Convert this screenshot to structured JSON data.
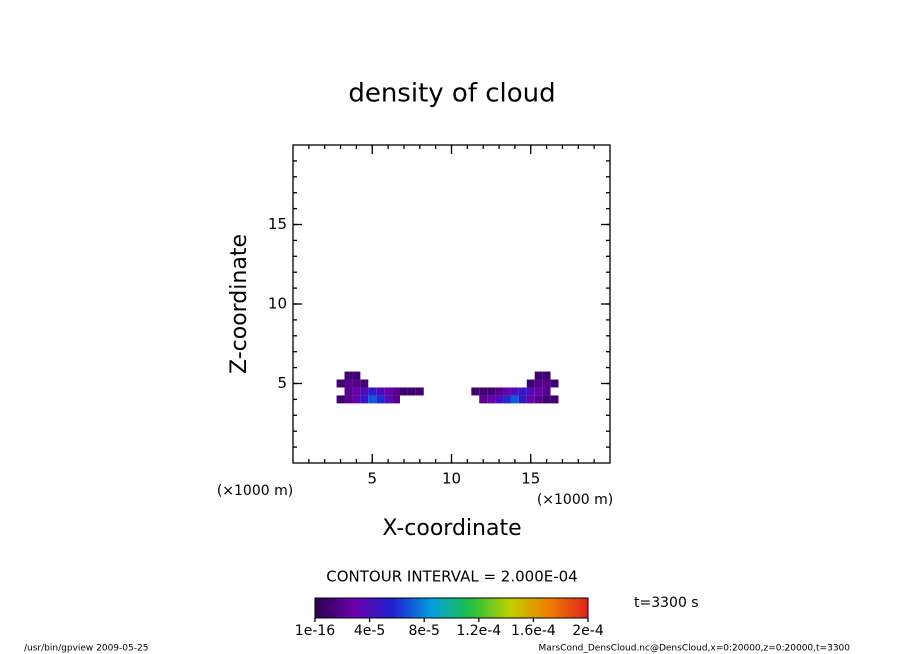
{
  "chart_data": {
    "type": "contour",
    "title": "density of cloud",
    "xlabel": "X-coordinate",
    "ylabel": "Z-coordinate",
    "xunit": "(×1000 m)",
    "yunit": "(×1000 m)",
    "xlim": [
      0,
      20
    ],
    "ylim": [
      0,
      20
    ],
    "xticks": [
      5,
      10,
      15
    ],
    "yticks": [
      5,
      10,
      15
    ],
    "minor_step": 1,
    "cell_size": 0.5,
    "cells": {
      "x": [
        3,
        3.5,
        4,
        4.5,
        5,
        5.5,
        6,
        6.5,
        3.5,
        4,
        4.5,
        5,
        5.5,
        6,
        6.5,
        7,
        7.5,
        8,
        3,
        3.5,
        4,
        4.5,
        3.5,
        4,
        12,
        12.5,
        13,
        13.5,
        14,
        14.5,
        15,
        15.5,
        16,
        16.5,
        11.5,
        12,
        12.5,
        13,
        13.5,
        14,
        14.5,
        15,
        15.5,
        16,
        15,
        15.5,
        16,
        16.5,
        15.5,
        16
      ],
      "z": [
        4,
        4,
        4,
        4,
        4,
        4,
        4,
        4,
        4.5,
        4.5,
        4.5,
        4.5,
        4.5,
        4.5,
        4.5,
        4.5,
        4.5,
        4.5,
        5,
        5,
        5,
        5,
        5.5,
        5.5,
        4,
        4,
        4,
        4,
        4,
        4,
        4,
        4,
        4,
        4,
        4.5,
        4.5,
        4.5,
        4.5,
        4.5,
        4.5,
        4.5,
        4.5,
        4.5,
        4.5,
        5,
        5,
        5,
        5,
        5.5,
        5.5
      ],
      "values": [
        1e-05,
        2e-05,
        3e-05,
        5e-05,
        7e-05,
        6e-05,
        4e-05,
        2e-05,
        2e-05,
        3e-05,
        4e-05,
        5e-05,
        4e-05,
        3e-05,
        2e-05,
        1e-05,
        1e-05,
        1e-05,
        1e-05,
        2e-05,
        2e-05,
        1e-05,
        1e-05,
        1e-05,
        2e-05,
        3e-05,
        4e-05,
        6e-05,
        7e-05,
        5e-05,
        3e-05,
        2e-05,
        1e-05,
        1e-05,
        1e-05,
        1e-05,
        1e-05,
        2e-05,
        3e-05,
        4e-05,
        5e-05,
        4e-05,
        3e-05,
        2e-05,
        1e-05,
        2e-05,
        2e-05,
        1e-05,
        1e-05,
        1e-05
      ]
    },
    "colormap": [
      "#2a0050",
      "#6a00a8",
      "#2020d0",
      "#00a0e0",
      "#20c040",
      "#c0d000",
      "#f08000",
      "#e02020"
    ],
    "clim": [
      1e-16,
      0.0002
    ],
    "colorbar_ticks": [
      {
        "value": 1e-16,
        "label": "1e-16"
      },
      {
        "value": 4e-05,
        "label": "4e-5"
      },
      {
        "value": 8e-05,
        "label": "8e-5"
      },
      {
        "value": 0.00012,
        "label": "1.2e-4"
      },
      {
        "value": 0.00016,
        "label": "1.6e-4"
      },
      {
        "value": 0.0002,
        "label": "2e-4"
      }
    ],
    "contour_interval": "CONTOUR INTERVAL = 2.000E-04",
    "time_label": "t=3300 s",
    "footer_left": "/usr/bin/gpview  2009-05-25",
    "footer_right": "MarsCond_DensCloud.nc@DensCloud,x=0:20000,z=0:20000,t=3300"
  }
}
